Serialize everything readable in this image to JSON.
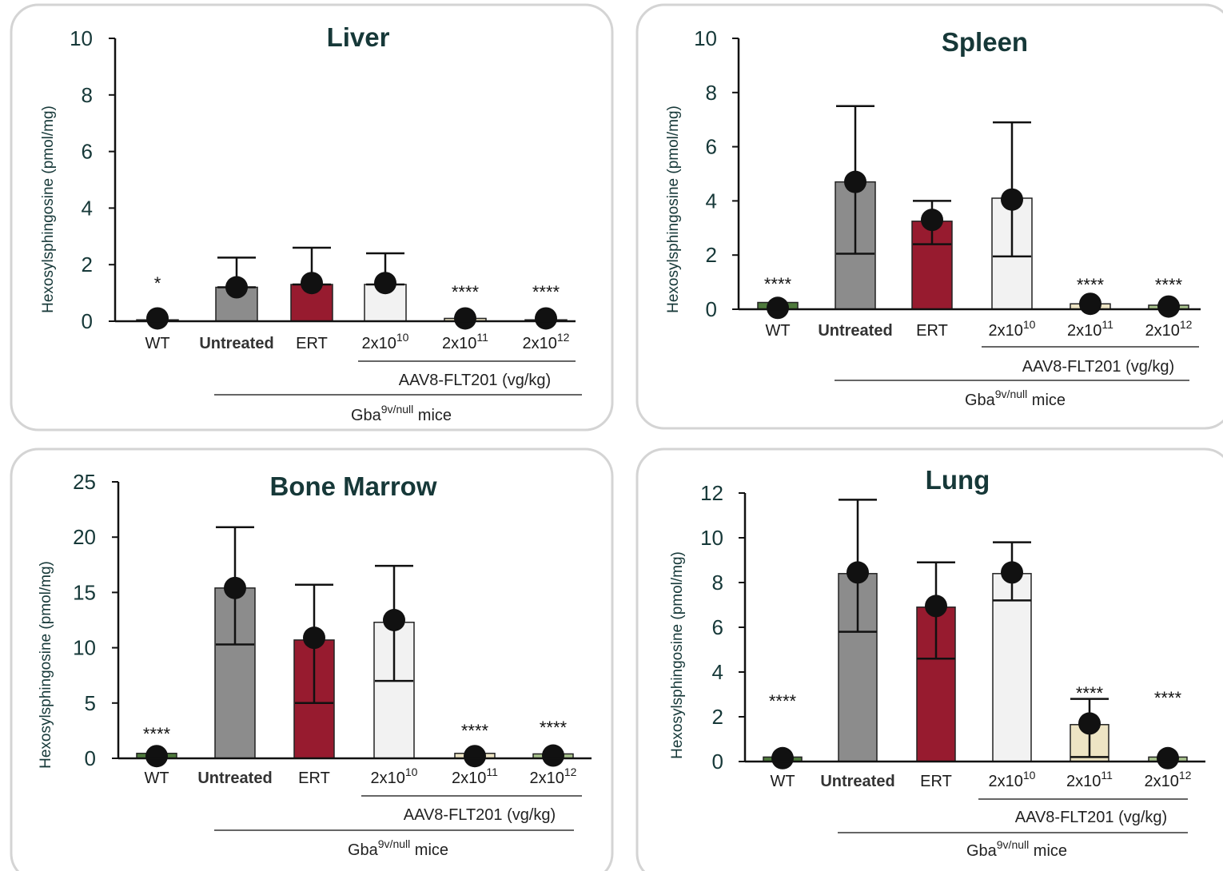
{
  "colors": {
    "WT": "#4e7a3c",
    "Untreated": "#8c8c8c",
    "ERT": "#971b2f",
    "2x10^10": "#f2f2f2",
    "2x10^11": "#ede4c4",
    "2x10^12": "#a9c38d"
  },
  "labels": {
    "ylabel": "Hexosylsphingosine (pmol/mg)",
    "aav_label": "AAV8-FLT201 (vg/kg)",
    "mice_label_base": "Gba",
    "mice_label_sup": "9v/null",
    "mice_label_tail": " mice",
    "dose_base": "2x10"
  },
  "chart_data": [
    {
      "type": "bar",
      "title": "Liver",
      "ylabel": "Hexosylsphingosine (pmol/mg)",
      "ylim": [
        0,
        10
      ],
      "yticks": [
        0,
        2,
        4,
        6,
        8,
        10
      ],
      "categories": [
        "WT",
        "Untreated",
        "ERT",
        "2x10^10",
        "2x10^11",
        "2x10^12"
      ],
      "values": [
        0.05,
        1.2,
        1.3,
        1.3,
        0.1,
        0.05
      ],
      "error_upper": [
        0.05,
        2.25,
        2.6,
        2.4,
        0.1,
        0.05
      ],
      "error_lower": [
        0.05,
        1.2,
        1.3,
        1.3,
        0.1,
        0.05
      ],
      "points": [
        0.1,
        1.2,
        1.35,
        1.35,
        0.1,
        0.1
      ],
      "significance": [
        "*",
        "",
        "",
        "",
        "****",
        "****"
      ],
      "group_labels": [
        "AAV8-FLT201 (vg/kg)",
        "Gba9v/null mice"
      ]
    },
    {
      "type": "bar",
      "title": "Spleen",
      "ylabel": "Hexosylsphingosine (pmol/mg)",
      "ylim": [
        0,
        10
      ],
      "yticks": [
        0,
        2,
        4,
        6,
        8,
        10
      ],
      "categories": [
        "WT",
        "Untreated",
        "ERT",
        "2x10^10",
        "2x10^11",
        "2x10^12"
      ],
      "values": [
        0.25,
        4.7,
        3.25,
        4.1,
        0.2,
        0.15
      ],
      "error_upper": [
        0.25,
        7.5,
        4.0,
        6.9,
        0.2,
        0.15
      ],
      "error_lower": [
        0.25,
        2.05,
        2.4,
        1.95,
        0.2,
        0.15
      ],
      "points": [
        0.05,
        4.7,
        3.3,
        4.05,
        0.2,
        0.1
      ],
      "significance": [
        "****",
        "",
        "",
        "",
        "****",
        "****"
      ],
      "group_labels": [
        "AAV8-FLT201 (vg/kg)",
        "Gba9v/null mice"
      ]
    },
    {
      "type": "bar",
      "title": "Bone Marrow",
      "ylabel": "Hexosylsphingosine (pmol/mg)",
      "ylim": [
        0,
        25
      ],
      "yticks": [
        0,
        5,
        10,
        15,
        20,
        25
      ],
      "categories": [
        "WT",
        "Untreated",
        "ERT",
        "2x10^10",
        "2x10^11",
        "2x10^12"
      ],
      "values": [
        0.45,
        15.4,
        10.7,
        12.3,
        0.45,
        0.4
      ],
      "error_upper": [
        0.45,
        20.9,
        15.7,
        17.4,
        0.45,
        0.4
      ],
      "error_lower": [
        0.45,
        10.3,
        5.0,
        7.0,
        0.45,
        0.4
      ],
      "points": [
        0.2,
        15.4,
        10.9,
        12.5,
        0.2,
        0.25
      ],
      "significance": [
        "****",
        "",
        "",
        "",
        "****",
        "****"
      ],
      "group_labels": [
        "AAV8-FLT201 (vg/kg)",
        "Gba9v/null mice"
      ]
    },
    {
      "type": "bar",
      "title": "Lung",
      "ylabel": "Hexosylsphingosine (pmol/mg)",
      "ylim": [
        0,
        12
      ],
      "yticks": [
        0,
        2,
        4,
        6,
        8,
        10,
        12
      ],
      "categories": [
        "WT",
        "Untreated",
        "ERT",
        "2x10^10",
        "2x10^11",
        "2x10^12"
      ],
      "values": [
        0.2,
        8.4,
        6.9,
        8.4,
        1.65,
        0.2
      ],
      "error_upper": [
        0.2,
        11.7,
        8.9,
        9.8,
        2.8,
        0.2
      ],
      "error_lower": [
        0.2,
        5.8,
        4.6,
        7.2,
        0.2,
        0.2
      ],
      "points": [
        0.15,
        8.45,
        6.95,
        8.45,
        1.7,
        0.15
      ],
      "significance": [
        "****",
        "",
        "",
        "",
        "****",
        "****"
      ],
      "group_labels": [
        "AAV8-FLT201 (vg/kg)",
        "Gba9v/null mice"
      ]
    }
  ]
}
